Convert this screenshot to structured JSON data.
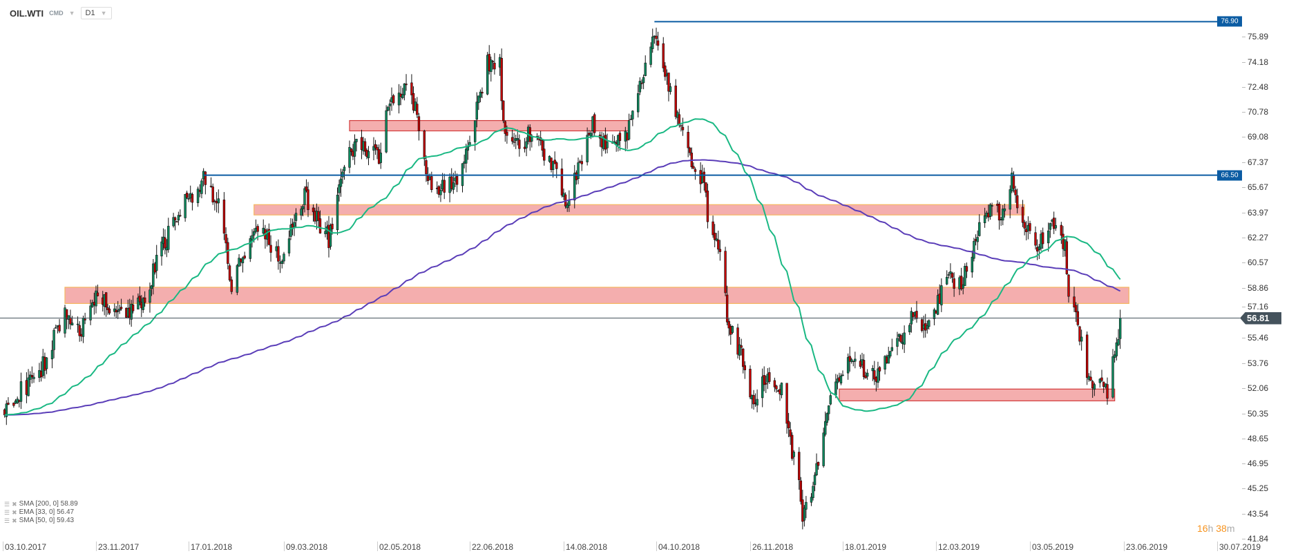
{
  "header": {
    "symbol": "OIL.WTI",
    "market": "CMD",
    "timeframe": "D1"
  },
  "legend": [
    {
      "text": "SMA  [200,  0] 58.89"
    },
    {
      "text": "EMA  [33,  0] 56.47"
    },
    {
      "text": "SMA  [50,  0] 59.43"
    }
  ],
  "timer": {
    "hours": "16",
    "h": "h",
    "minutes": " 38",
    "m": "m"
  },
  "colors": {
    "up": "#0e8a5f",
    "down": "#c40000",
    "sma200": "#5a3db8",
    "sma50": "#19b883",
    "level_line": "#0b5ca3",
    "zone_fill": "#f2a0a0",
    "zone_border_red": "#d23a3a",
    "zone_border_orange": "#f5b860",
    "current_price": "#44525c"
  },
  "chart_data": {
    "type": "candlestick",
    "instrument": "OIL.WTI",
    "interval": "D1",
    "y_ticks": [
      "75.89",
      "74.18",
      "72.48",
      "70.78",
      "69.08",
      "67.37",
      "65.67",
      "63.97",
      "62.27",
      "60.57",
      "58.86",
      "57.16",
      "55.46",
      "53.76",
      "52.06",
      "50.35",
      "48.65",
      "46.95",
      "45.25",
      "43.54",
      "41.84"
    ],
    "y_range": [
      41.84,
      77.0
    ],
    "x_ticks": [
      "03.10.2017",
      "23.11.2017",
      "17.01.2018",
      "09.03.2018",
      "02.05.2018",
      "22.06.2018",
      "14.08.2018",
      "04.10.2018",
      "26.11.2018",
      "18.01.2019",
      "12.03.2019",
      "03.05.2019",
      "23.06.2019",
      "30.07.2019"
    ],
    "approx_closes": [
      [
        "04.10.2017",
        50.5
      ],
      [
        "11.10.2017",
        51.6
      ],
      [
        "24.10.2017",
        53.3
      ],
      [
        "06.11.2017",
        57.2
      ],
      [
        "15.11.2017",
        56.1
      ],
      [
        "24.11.2017",
        58.3
      ],
      [
        "08.12.2017",
        56.9
      ],
      [
        "22.12.2017",
        58.3
      ],
      [
        "02.01.2018",
        61.7
      ],
      [
        "12.01.2018",
        64.2
      ],
      [
        "26.01.2018",
        66.4
      ],
      [
        "02.02.2018",
        64.5
      ],
      [
        "09.02.2018",
        59.2
      ],
      [
        "15.02.2018",
        61.1
      ],
      [
        "23.02.2018",
        63.3
      ],
      [
        "07.03.2018",
        60.6
      ],
      [
        "21.03.2018",
        65.0
      ],
      [
        "04.04.2018",
        62.2
      ],
      [
        "11.04.2018",
        66.7
      ],
      [
        "19.04.2018",
        68.4
      ],
      [
        "03.05.2018",
        67.8
      ],
      [
        "07.05.2018",
        71.1
      ],
      [
        "18.05.2018",
        72.5
      ],
      [
        "24.05.2018",
        70.6
      ],
      [
        "29.05.2018",
        67.2
      ],
      [
        "01.06.2018",
        65.3
      ],
      [
        "15.06.2018",
        66.1
      ],
      [
        "25.06.2018",
        70.6
      ],
      [
        "02.07.2018",
        74.2
      ],
      [
        "09.07.2018",
        73.9
      ],
      [
        "11.07.2018",
        70.0
      ],
      [
        "20.07.2018",
        68.4
      ],
      [
        "27.07.2018",
        69.5
      ],
      [
        "10.08.2018",
        66.7
      ],
      [
        "16.08.2018",
        64.7
      ],
      [
        "21.08.2018",
        66.7
      ],
      [
        "30.08.2018",
        70.0
      ],
      [
        "07.09.2018",
        68.4
      ],
      [
        "17.09.2018",
        68.9
      ],
      [
        "24.09.2018",
        72.3
      ],
      [
        "03.10.2018",
        76.2
      ],
      [
        "10.10.2018",
        72.8
      ],
      [
        "17.10.2018",
        70.0
      ],
      [
        "24.10.2018",
        67.2
      ],
      [
        "31.10.2018",
        66.1
      ],
      [
        "02.11.2018",
        63.9
      ],
      [
        "09.11.2018",
        61.1
      ],
      [
        "14.11.2018",
        56.1
      ],
      [
        "21.11.2018",
        54.4
      ],
      [
        "28.11.2018",
        51.1
      ],
      [
        "05.12.2018",
        52.7
      ],
      [
        "14.12.2018",
        52.2
      ],
      [
        "19.12.2018",
        48.3
      ],
      [
        "24.12.2018",
        45.5
      ],
      [
        "26.12.2018",
        43.2
      ],
      [
        "31.12.2018",
        44.9
      ],
      [
        "04.01.2019",
        47.2
      ],
      [
        "07.01.2019",
        49.4
      ],
      [
        "11.01.2019",
        51.6
      ],
      [
        "21.01.2019",
        53.9
      ],
      [
        "30.01.2019",
        53.3
      ],
      [
        "06.02.2019",
        52.7
      ],
      [
        "18.02.2019",
        55.0
      ],
      [
        "27.02.2019",
        57.2
      ],
      [
        "08.03.2019",
        56.1
      ],
      [
        "18.03.2019",
        59.4
      ],
      [
        "27.03.2019",
        59.4
      ],
      [
        "03.04.2019",
        62.2
      ],
      [
        "10.04.2019",
        64.2
      ],
      [
        "19.04.2019",
        63.9
      ],
      [
        "23.04.2019",
        66.1
      ],
      [
        "26.04.2019",
        64.5
      ],
      [
        "06.05.2019",
        61.7
      ],
      [
        "10.05.2019",
        62.2
      ],
      [
        "17.05.2019",
        63.6
      ],
      [
        "22.05.2019",
        61.7
      ],
      [
        "24.05.2019",
        58.3
      ],
      [
        "29.05.2019",
        56.6
      ],
      [
        "03.06.2019",
        52.7
      ],
      [
        "10.06.2019",
        52.2
      ],
      [
        "14.06.2019",
        51.6
      ],
      [
        "19.06.2019",
        55.0
      ],
      [
        "21.06.2019",
        56.81
      ]
    ],
    "current_price": "56.81",
    "levels": [
      {
        "price": 76.9,
        "label": "76.90",
        "from": "03.10.2018"
      },
      {
        "price": 66.5,
        "label": "66.50",
        "from": "25.01.2018"
      }
    ],
    "zones": [
      {
        "from": "16.04.2018",
        "to": "19.09.2018",
        "low": 69.5,
        "high": 70.2,
        "border": "red"
      },
      {
        "from": "21.02.2018",
        "to": "30.04.2019",
        "low": 63.8,
        "high": 64.5,
        "border": "orange"
      },
      {
        "from": "06.11.2017",
        "to": "25.06.2019",
        "low": 57.8,
        "high": 58.9,
        "border": "orange"
      },
      {
        "from": "16.01.2019",
        "to": "18.06.2019",
        "low": 51.2,
        "high": 52.0,
        "border": "red"
      }
    ],
    "indicators": [
      {
        "name": "SMA 200",
        "period": 200,
        "color": "#5a3db8"
      },
      {
        "name": "SMA 50",
        "period": 50,
        "color": "#19b883"
      }
    ]
  }
}
